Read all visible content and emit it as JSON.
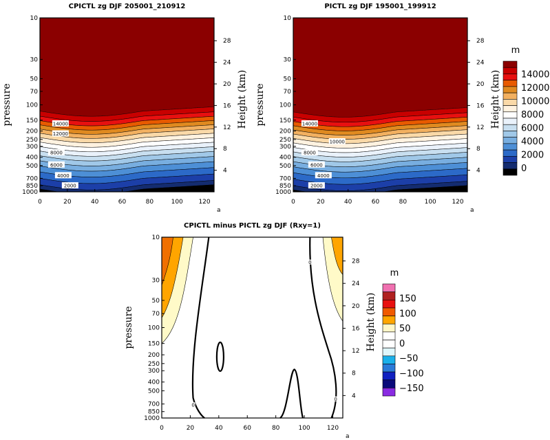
{
  "chart_data": [
    {
      "type": "contour",
      "title": "CPICTL zg DJF 205001_210912",
      "xlabel": "",
      "ylabel_left": "pressure",
      "ylabel_right": "Height (km)",
      "x_ticks": [
        0,
        20,
        40,
        60,
        80,
        100,
        120
      ],
      "x_lim": [
        0,
        127
      ],
      "pressure_ticks": [
        10,
        30,
        50,
        70,
        100,
        150,
        200,
        250,
        300,
        400,
        500,
        700,
        850,
        1000
      ],
      "height_ticks": [
        4,
        8,
        12,
        16,
        20,
        24,
        28
      ],
      "contour_labels": [
        {
          "text": "14000",
          "x": 15,
          "p": 165
        },
        {
          "text": "12000",
          "x": 15,
          "p": 215
        },
        {
          "text": "8000",
          "x": 12,
          "p": 355
        },
        {
          "text": "6000",
          "x": 12,
          "p": 490
        },
        {
          "text": "4000",
          "x": 17,
          "p": 650
        },
        {
          "text": "2000",
          "x": 22,
          "p": 850
        }
      ]
    },
    {
      "type": "contour",
      "title": "PICTL zg DJF 195001_199912",
      "xlabel": "",
      "ylabel_left": "pressure",
      "ylabel_right": "Height (km)",
      "x_ticks": [
        0,
        20,
        40,
        60,
        80,
        100,
        120
      ],
      "x_lim": [
        0,
        127
      ],
      "pressure_ticks": [
        10,
        30,
        50,
        70,
        100,
        150,
        200,
        250,
        300,
        400,
        500,
        700,
        850,
        1000
      ],
      "height_ticks": [
        4,
        8,
        12,
        16,
        20,
        24,
        28
      ],
      "contour_labels": [
        {
          "text": "14000",
          "x": 12,
          "p": 165
        },
        {
          "text": "10000",
          "x": 32,
          "p": 265
        },
        {
          "text": "8000",
          "x": 12,
          "p": 355
        },
        {
          "text": "6000",
          "x": 17,
          "p": 490
        },
        {
          "text": "4000",
          "x": 22,
          "p": 650
        },
        {
          "text": "2000",
          "x": 17,
          "p": 850
        }
      ]
    },
    {
      "type": "contour",
      "title": "CPICTL minus PICTL zg DJF (Rxy=1)",
      "xlabel": "",
      "ylabel_left": "pressure",
      "ylabel_right": "Height (km)",
      "x_ticks": [
        0,
        20,
        40,
        60,
        80,
        100,
        120
      ],
      "x_lim": [
        0,
        127
      ],
      "pressure_ticks": [
        10,
        30,
        50,
        70,
        100,
        150,
        200,
        250,
        300,
        400,
        500,
        700,
        850,
        1000
      ],
      "height_ticks": [
        4,
        8,
        12,
        16,
        20,
        24,
        28
      ],
      "contour_labels": [
        {
          "text": "0",
          "x": 22,
          "p": 720
        },
        {
          "text": "0",
          "x": 104,
          "p": 19
        },
        {
          "text": "0",
          "x": 122,
          "p": 620
        }
      ]
    }
  ],
  "x_corner_label": "a",
  "colorbar_top": {
    "unit": "m",
    "labels": [
      "14000",
      "12000",
      "10000",
      "8000",
      "6000",
      "4000",
      "2000",
      "0"
    ],
    "colors": [
      "#8b0000",
      "#c80000",
      "#e81010",
      "#e85a00",
      "#e08a20",
      "#f2b060",
      "#fad9a8",
      "#fff2e0",
      "#ffffff",
      "#eaf2fb",
      "#c8dff0",
      "#a0c8e8",
      "#78aee0",
      "#4d8fd6",
      "#2c6ac8",
      "#1c3fa8",
      "#142c70",
      "#000000"
    ]
  },
  "colorbar_bottom": {
    "unit": "m",
    "labels": [
      "150",
      "100",
      "50",
      "0",
      "−50",
      "−100",
      "−150"
    ],
    "colors": [
      "#f070b0",
      "#b02020",
      "#e81010",
      "#f05a00",
      "#ffa500",
      "#fff6c8",
      "#ffffff",
      "#ffffff",
      "#dff6fb",
      "#1ab0ea",
      "#2a7ad8",
      "#1020c0",
      "#0a0a7a",
      "#8a2be2"
    ]
  }
}
